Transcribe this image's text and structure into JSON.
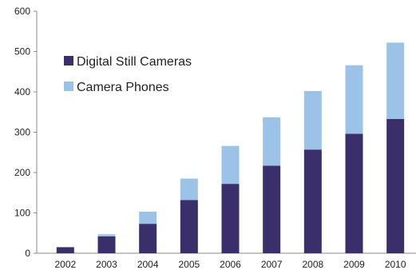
{
  "chart_data": {
    "type": "bar",
    "stacked": true,
    "title": "",
    "xlabel": "",
    "ylabel": "",
    "categories": [
      "2002",
      "2003",
      "2004",
      "2005",
      "2006",
      "2007",
      "2008",
      "2009",
      "2010"
    ],
    "series": [
      {
        "name": "Digital Still Cameras",
        "color": "#3a2f6b",
        "values": [
          15,
          42,
          73,
          132,
          172,
          217,
          257,
          296,
          333
        ]
      },
      {
        "name": "Camera Phones",
        "color": "#9bc3e8",
        "values": [
          0,
          5,
          30,
          53,
          94,
          120,
          145,
          170,
          189
        ]
      }
    ],
    "ylim": [
      0,
      600
    ],
    "yticks": [
      0,
      100,
      200,
      300,
      400,
      500,
      600
    ],
    "grid": false,
    "legend_position": "top-left"
  }
}
